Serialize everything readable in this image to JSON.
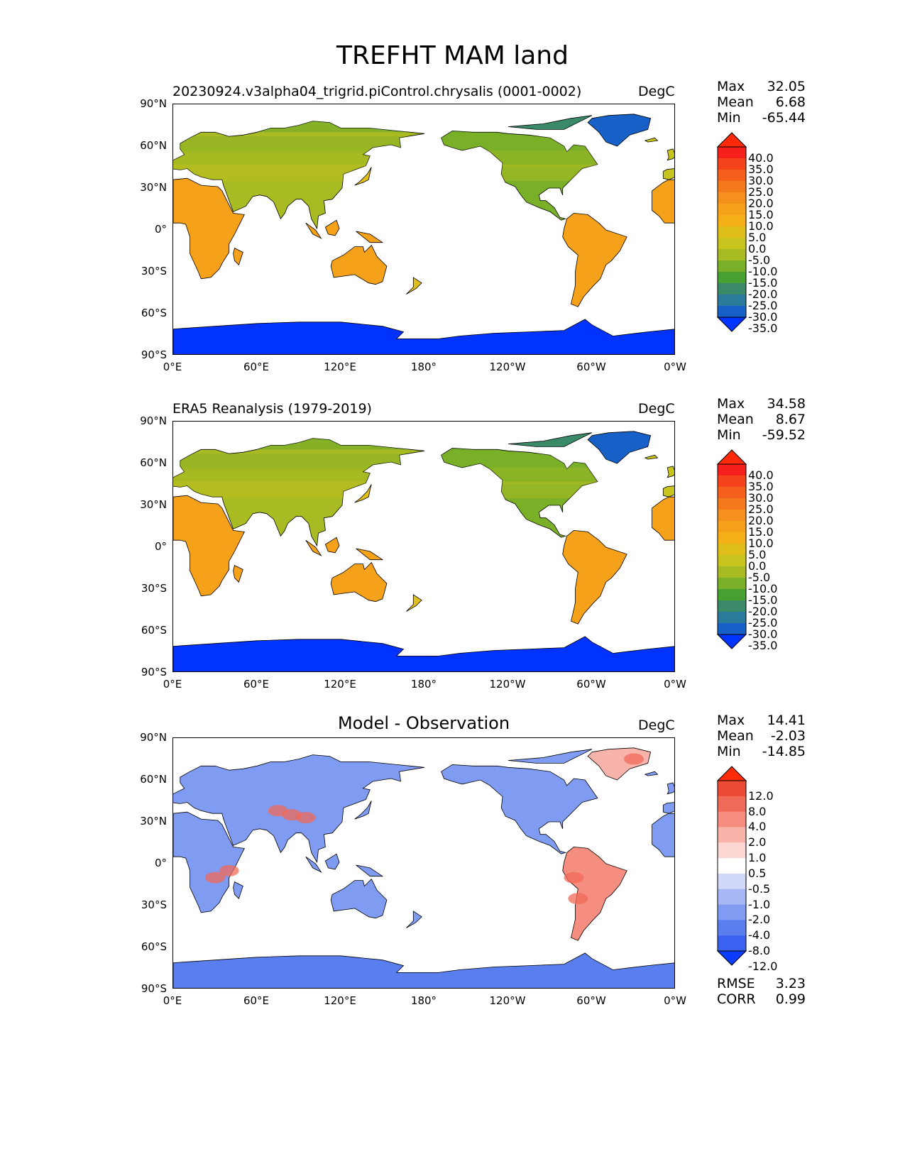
{
  "figure": {
    "title": "TREFHT MAM land"
  },
  "axes": {
    "lat_ticks": [
      "90°N",
      "60°N",
      "30°N",
      "0°",
      "30°S",
      "60°S",
      "90°S"
    ],
    "lon_ticks": [
      "0°E",
      "60°E",
      "120°E",
      "180°",
      "120°W",
      "60°W",
      "0°W"
    ]
  },
  "panels": [
    {
      "id": "model",
      "title": "20230924.v3alpha04_trigrid.piControl.chrysalis (0001-0002)",
      "units": "DegC",
      "stats": [
        {
          "label": "Max",
          "value": "32.05"
        },
        {
          "label": "Mean",
          "value": "6.68"
        },
        {
          "label": "Min",
          "value": "-65.44"
        }
      ],
      "colorbar": {
        "labels": [
          "40.0",
          "35.0",
          "30.0",
          "25.0",
          "20.0",
          "15.0",
          "10.0",
          "5.0",
          "0.0",
          "-5.0",
          "-10.0",
          "-15.0",
          "-20.0",
          "-25.0",
          "-30.0",
          "-35.0"
        ],
        "colors": [
          "#0033ff",
          "#1760c8",
          "#2a7a9c",
          "#3a8a6a",
          "#48a030",
          "#7ab028",
          "#a8bb22",
          "#c8c41e",
          "#e0be1a",
          "#f5b018",
          "#f5a21a",
          "#f5901c",
          "#f57a1c",
          "#f5601c",
          "#f5441c",
          "#f5201c",
          "#ff2a0a"
        ]
      }
    },
    {
      "id": "obs",
      "title": "ERA5 Reanalysis (1979-2019)",
      "units": "DegC",
      "stats": [
        {
          "label": "Max",
          "value": "34.58"
        },
        {
          "label": "Mean",
          "value": "8.67"
        },
        {
          "label": "Min",
          "value": "-59.52"
        }
      ],
      "colorbar": {
        "labels": [
          "40.0",
          "35.0",
          "30.0",
          "25.0",
          "20.0",
          "15.0",
          "10.0",
          "5.0",
          "0.0",
          "-5.0",
          "-10.0",
          "-15.0",
          "-20.0",
          "-25.0",
          "-30.0",
          "-35.0"
        ],
        "colors": [
          "#0033ff",
          "#1760c8",
          "#2a7a9c",
          "#3a8a6a",
          "#48a030",
          "#7ab028",
          "#a8bb22",
          "#c8c41e",
          "#e0be1a",
          "#f5b018",
          "#f5a21a",
          "#f5901c",
          "#f57a1c",
          "#f5601c",
          "#f5441c",
          "#f5201c",
          "#ff2a0a"
        ]
      }
    },
    {
      "id": "diff",
      "title": "Model - Observation",
      "units": "DegC",
      "stats": [
        {
          "label": "Max",
          "value": "14.41"
        },
        {
          "label": "Mean",
          "value": "-2.03"
        },
        {
          "label": "Min",
          "value": "-14.85"
        }
      ],
      "metrics": [
        {
          "label": "RMSE",
          "value": "3.23"
        },
        {
          "label": "CORR",
          "value": "0.99"
        }
      ],
      "colorbar": {
        "labels": [
          "12.0",
          "8.0",
          "4.0",
          "2.0",
          "1.0",
          "0.5",
          "-0.5",
          "-1.0",
          "-2.0",
          "-4.0",
          "-8.0",
          "-12.0"
        ],
        "colors": [
          "#0a3cff",
          "#3a62f0",
          "#5a7eee",
          "#7f9cf2",
          "#a6b8f4",
          "#d0daf8",
          "#ffffff",
          "#fbd6d2",
          "#f8b4aa",
          "#f58e80",
          "#f06a58",
          "#ec4a34",
          "#ff2a0a"
        ]
      }
    }
  ]
}
